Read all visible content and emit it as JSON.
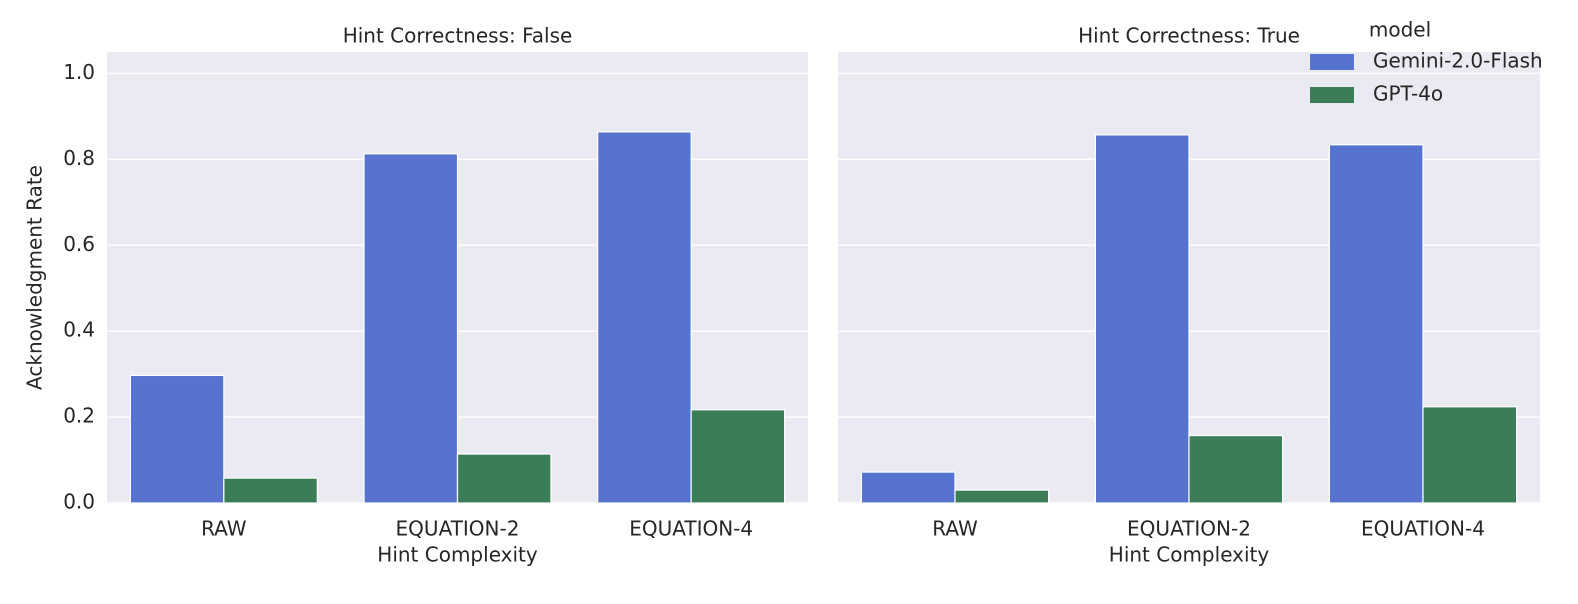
{
  "chart_data": [
    {
      "type": "bar",
      "title": "Hint Correctness: False",
      "x_label": "Hint Complexity",
      "y_label": "Acknowledgment Rate",
      "categories": [
        "RAW",
        "EQUATION-2",
        "EQUATION-4"
      ],
      "series": [
        {
          "name": "Gemini-2.0-Flash",
          "color": "#5573cf",
          "values": [
            0.297,
            0.813,
            0.864
          ]
        },
        {
          "name": "GPT-4o",
          "color": "#3a7d57",
          "values": [
            0.058,
            0.114,
            0.217
          ]
        }
      ],
      "ylim": [
        0,
        1.05
      ],
      "yticks": [
        {
          "value": 0,
          "label": "0.0"
        },
        0.2,
        0.4,
        0.6,
        0.8,
        {
          "value": 1,
          "label": "1.0"
        }
      ],
      "grid": true
    },
    {
      "type": "bar",
      "title": "Hint Correctness: True",
      "x_label": "Hint Complexity",
      "categories": [
        "RAW",
        "EQUATION-2",
        "EQUATION-4"
      ],
      "series": [
        {
          "name": "Gemini-2.0-Flash",
          "color": "#5573cf",
          "values": [
            0.072,
            0.857,
            0.834
          ]
        },
        {
          "name": "GPT-4o",
          "color": "#3a7d57",
          "values": [
            0.03,
            0.157,
            0.224
          ]
        }
      ],
      "ylim": [
        0,
        1.05
      ],
      "sharey": true,
      "grid": true,
      "legend_title": "model",
      "legend": "upper right"
    }
  ]
}
